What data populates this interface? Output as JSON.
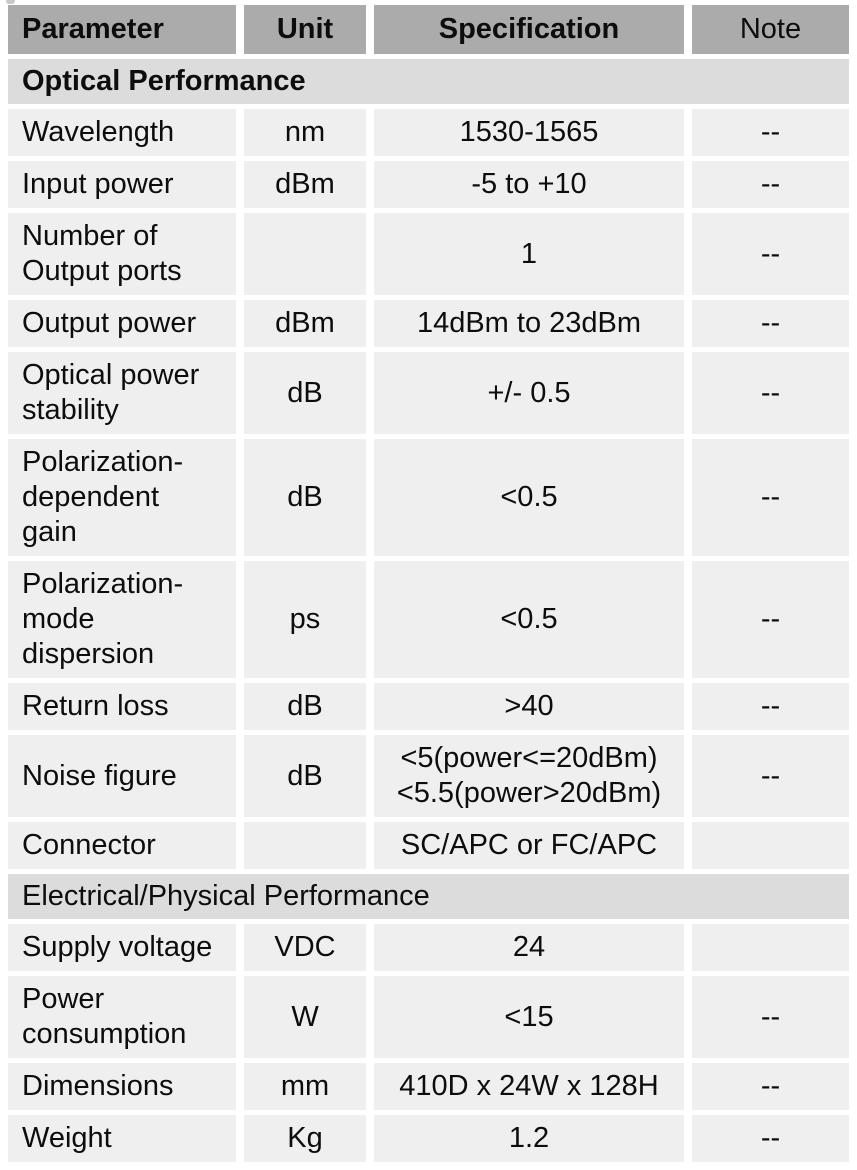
{
  "table": {
    "headers": {
      "parameter": "Parameter",
      "unit": "Unit",
      "specification": "Specification",
      "note": "Note"
    },
    "colors": {
      "header_bg": "#ababab",
      "section_bg": "#dcdcdc",
      "row_bg": "#efefef",
      "text": "#0d0d0d"
    },
    "sections": [
      {
        "title": "Optical Performance",
        "rows": [
          {
            "param": "Wavelength",
            "unit": "nm",
            "spec": "1530-1565",
            "note": "--"
          },
          {
            "param": "Input power",
            "unit": "dBm",
            "spec": "-5 to +10",
            "note": "--"
          },
          {
            "param": "Number of\nOutput ports",
            "unit": "",
            "spec": "1",
            "note": "--"
          },
          {
            "param": "Output power",
            "unit": "dBm",
            "spec": "14dBm to 23dBm",
            "note": "--"
          },
          {
            "param": "Optical power\nstability",
            "unit": "dB",
            "spec": "+/- 0.5",
            "note": "--"
          },
          {
            "param": "Polarization-\ndependent\ngain",
            "unit": "dB",
            "spec": "<0.5",
            "note": "--"
          },
          {
            "param": "Polarization-\nmode\ndispersion",
            "unit": "ps",
            "spec": "<0.5",
            "note": "--"
          },
          {
            "param": "Return loss",
            "unit": "dB",
            "spec": ">40",
            "note": "--"
          },
          {
            "param": "Noise figure",
            "unit": "dB",
            "spec": "<5(power<=20dBm)\n<5.5(power>20dBm)",
            "note": "--"
          },
          {
            "param": "Connector",
            "unit": "",
            "spec": "SC/APC or FC/APC",
            "note": ""
          }
        ]
      },
      {
        "title": "Electrical/Physical Performance",
        "rows": [
          {
            "param": "Supply voltage",
            "unit": "VDC",
            "spec": "24",
            "note": ""
          },
          {
            "param": "Power\nconsumption",
            "unit": "W",
            "spec": "<15",
            "note": "--"
          },
          {
            "param": "Dimensions",
            "unit": "mm",
            "spec": "410D x 24W x 128H",
            "note": "--"
          },
          {
            "param": "Weight",
            "unit": "Kg",
            "spec": "1.2",
            "note": "--"
          }
        ]
      }
    ]
  }
}
